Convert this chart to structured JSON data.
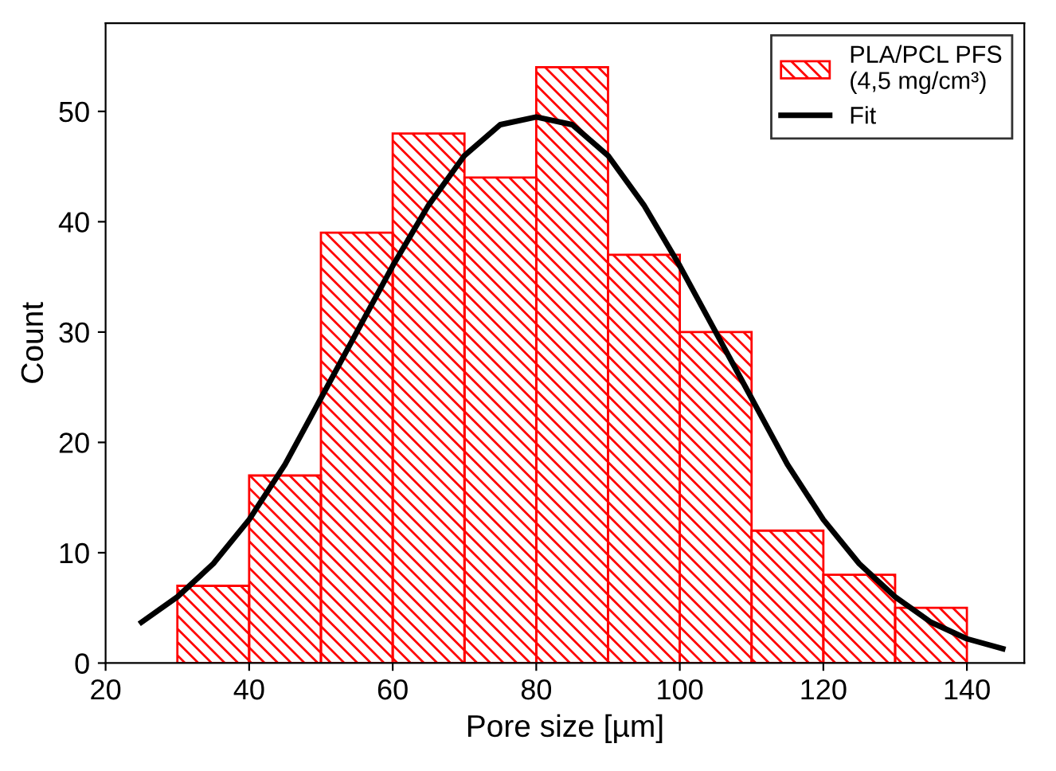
{
  "chart_data": {
    "type": "histogram",
    "xlabel": "Pore size [µm]",
    "ylabel": "Count",
    "bins": [
      30,
      40,
      50,
      60,
      70,
      80,
      90,
      100,
      110,
      120,
      130,
      140
    ],
    "series": [
      {
        "name": "PLA/PCL PFS\n(4,5 mg/cm³)",
        "color": "#ff0000",
        "values": [
          7,
          17,
          39,
          48,
          44,
          54,
          37,
          30,
          12,
          8,
          5
        ]
      },
      {
        "name": "Fit",
        "type": "line",
        "color": "#000000",
        "x": [
          25,
          30,
          35,
          40,
          45,
          50,
          55,
          60,
          65,
          70,
          75,
          80,
          85,
          90,
          95,
          100,
          105,
          110,
          115,
          120,
          125,
          130,
          135,
          140,
          145
        ],
        "values": [
          3.7,
          6,
          9,
          13,
          18,
          24,
          30,
          36,
          41.5,
          46,
          48.8,
          49.5,
          48.8,
          46,
          41.5,
          36,
          30,
          24,
          18,
          13,
          9,
          6,
          3.7,
          2.2,
          1.3
        ]
      }
    ],
    "xlim": [
      20,
      148
    ],
    "xticks": [
      20,
      40,
      60,
      80,
      100,
      120,
      140
    ],
    "ylim": [
      0,
      58
    ],
    "yticks": [
      0,
      10,
      20,
      30,
      40,
      50
    ],
    "legend": "top right",
    "grid": false
  }
}
